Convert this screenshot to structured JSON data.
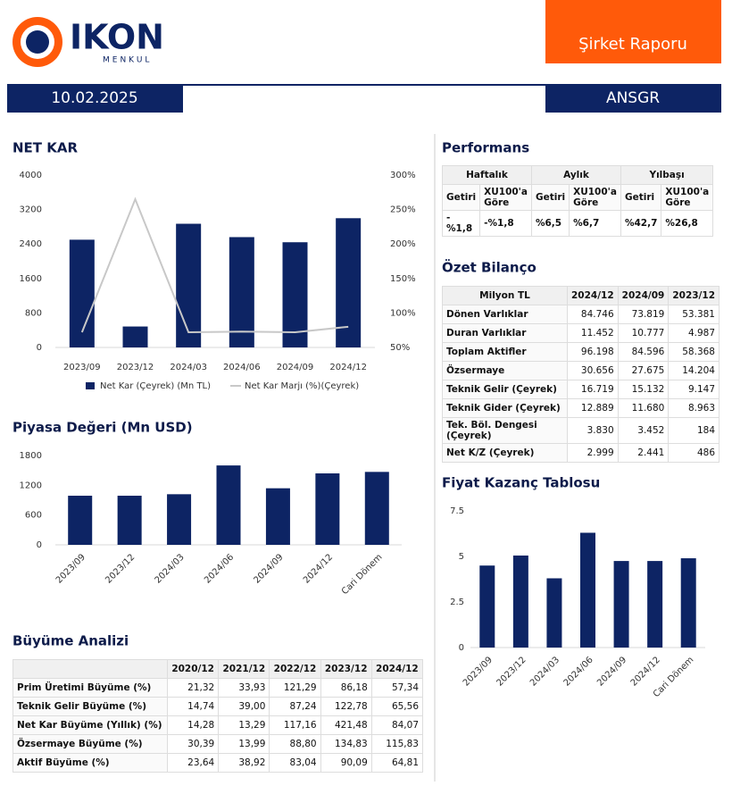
{
  "header": {
    "logo": "IKON",
    "logo_sub": "MENKUL",
    "report_title": "Şirket Raporu",
    "date": "10.02.2025",
    "ticker": "ANSGR"
  },
  "chart_data": [
    {
      "type": "bar",
      "title": "NET KAR",
      "categories": [
        "2023/09",
        "2023/12",
        "2024/03",
        "2024/06",
        "2024/09",
        "2024/12"
      ],
      "series": [
        {
          "name": "Net Kar (Çeyrek) (Mn TL)",
          "color": "#0d2464",
          "values": [
            2500,
            486,
            2870,
            2560,
            2441,
            2999
          ]
        },
        {
          "name": "Net Kar Marjı (%)(Çeyrek)",
          "color": "#c8c8c8",
          "type": "line",
          "axis": "y2",
          "values": [
            72,
            265,
            72,
            73,
            72,
            80
          ]
        }
      ],
      "ylim": [
        0,
        4000
      ],
      "yticks": [
        0,
        800,
        1600,
        2400,
        3200,
        4000
      ],
      "y2lim": [
        50,
        300
      ],
      "y2ticks": [
        {
          "value": 50,
          "label": "50%"
        },
        {
          "value": 100,
          "label": "100%"
        },
        {
          "value": 150,
          "label": "150%"
        },
        {
          "value": 200,
          "label": "200%"
        },
        {
          "value": 250,
          "label": "250%"
        },
        {
          "value": 300,
          "label": "300%"
        }
      ],
      "legend": "bottom"
    },
    {
      "type": "bar",
      "title": "Piyasa Değeri (Mn USD)",
      "categories": [
        "2023/09",
        "2023/12",
        "2024/03",
        "2024/06",
        "2024/09",
        "2024/12",
        "Cari Dönem"
      ],
      "values": [
        990,
        990,
        1020,
        1600,
        1140,
        1440,
        1470
      ],
      "color": "#0d2464",
      "ylim": [
        0,
        1800
      ],
      "yticks": [
        0,
        600,
        1200,
        1800
      ]
    },
    {
      "type": "bar",
      "title": "Fiyat Kazanç Tablosu",
      "categories": [
        "2023/09",
        "2023/12",
        "2024/03",
        "2024/06",
        "2024/09",
        "2024/12",
        "Cari Dönem"
      ],
      "values": [
        4.5,
        5.05,
        3.8,
        6.3,
        4.75,
        4.75,
        4.9
      ],
      "color": "#0d2464",
      "ylim": [
        0,
        7.5
      ],
      "yticks": [
        0,
        2.5,
        5,
        7.5
      ]
    }
  ],
  "performans": {
    "title": "Performans",
    "groups": [
      "Haftalık",
      "Aylık",
      "Yılbaşı"
    ],
    "columns": [
      "Getiri",
      "XU100'a Göre",
      "Getiri",
      "XU100'a Göre",
      "Getiri",
      "XU100'a Göre"
    ],
    "values": [
      "-%1,8",
      "-%1,8",
      "%6,5",
      "%6,7",
      "%42,7",
      "%26,8"
    ]
  },
  "ozet_bilanco": {
    "title": "Özet Bilanço",
    "columns": [
      "Milyon TL",
      "2024/12",
      "2024/09",
      "2023/12"
    ],
    "rows": [
      [
        "Dönen Varlıklar",
        "84.746",
        "73.819",
        "53.381"
      ],
      [
        "Duran Varlıklar",
        "11.452",
        "10.777",
        "4.987"
      ],
      [
        "Toplam Aktifler",
        "96.198",
        "84.596",
        "58.368"
      ],
      [
        "Özsermaye",
        "30.656",
        "27.675",
        "14.204"
      ],
      [
        "Teknik Gelir (Çeyrek)",
        "16.719",
        "15.132",
        "9.147"
      ],
      [
        "Teknik Gider (Çeyrek)",
        "12.889",
        "11.680",
        "8.963"
      ],
      [
        "Tek. Böl. Dengesi (Çeyrek)",
        "3.830",
        "3.452",
        "184"
      ],
      [
        "Net K/Z (Çeyrek)",
        "2.999",
        "2.441",
        "486"
      ]
    ]
  },
  "buyume": {
    "title": "Büyüme Analizi",
    "columns": [
      "2020/12",
      "2021/12",
      "2022/12",
      "2023/12",
      "2024/12"
    ],
    "rows": [
      [
        "Prim Üretimi Büyüme (%)",
        "21,32",
        "33,93",
        "121,29",
        "86,18",
        "57,34"
      ],
      [
        "Teknik Gelir Büyüme (%)",
        "14,74",
        "39,00",
        "87,24",
        "122,78",
        "65,56"
      ],
      [
        "Net Kar Büyüme (Yıllık) (%)",
        "14,28",
        "13,29",
        "117,16",
        "421,48",
        "84,07"
      ],
      [
        "Özsermaye Büyüme (%)",
        "30,39",
        "13,99",
        "88,80",
        "134,83",
        "115,83"
      ],
      [
        "Aktif Büyüme (%)",
        "23,64",
        "38,92",
        "83,04",
        "90,09",
        "64,81"
      ]
    ]
  }
}
